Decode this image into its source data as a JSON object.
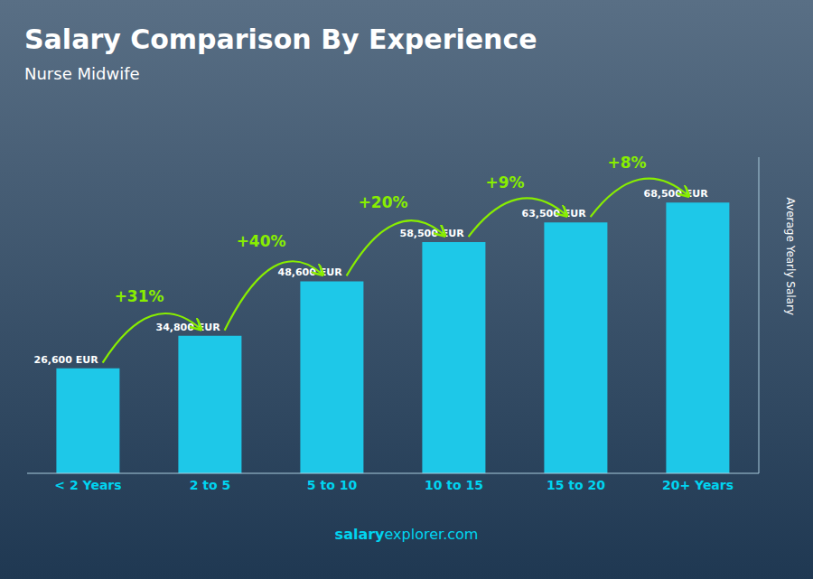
{
  "chart_data": {
    "type": "bar",
    "title": "Salary Comparison By Experience",
    "subtitle": "Nurse Midwife",
    "categories": [
      "< 2 Years",
      "2 to 5",
      "5 to 10",
      "10 to 15",
      "15 to 20",
      "20+ Years"
    ],
    "values": [
      26600,
      34800,
      48600,
      58500,
      63500,
      68500
    ],
    "value_labels": [
      "26,600 EUR",
      "34,800 EUR",
      "48,600 EUR",
      "58,500 EUR",
      "63,500 EUR",
      "68,500 EUR"
    ],
    "data_labels": true,
    "color": "#1ec8e8",
    "ylabel": "Average Yearly Salary",
    "ylim": [
      0,
      80000
    ],
    "grid": false,
    "tick_labels": "x",
    "annotations": [
      "+31%",
      "+40%",
      "+20%",
      "+9%",
      "+8%"
    ],
    "footer": [
      "salary",
      "explorer.com"
    ]
  }
}
